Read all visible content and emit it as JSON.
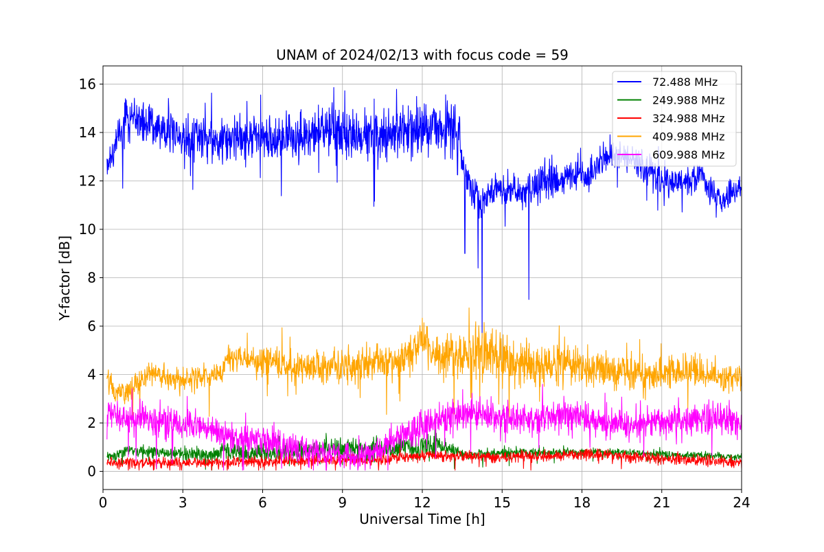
{
  "chart_data": {
    "type": "line",
    "title": "UNAM of 2024/02/13 with focus code = 59",
    "xlabel": "Universal Time [h]",
    "ylabel": "Y-factor [dB]",
    "xlim": [
      0,
      24
    ],
    "ylim": [
      -0.75,
      16.75
    ],
    "xticks": [
      "0",
      "3",
      "6",
      "9",
      "12",
      "15",
      "18",
      "21",
      "24"
    ],
    "yticks": [
      "0",
      "2",
      "4",
      "6",
      "8",
      "10",
      "12",
      "14",
      "16"
    ],
    "grid": true,
    "legend_position": "top-right",
    "series": [
      {
        "name": " 72.488 MHz",
        "color": "#0000ff",
        "points": [
          [
            0.15,
            12.8
          ],
          [
            0.4,
            13.3
          ],
          [
            0.75,
            14.0
          ],
          [
            0.8,
            14.8
          ],
          [
            1.5,
            14.4
          ],
          [
            2.5,
            14.0
          ],
          [
            3.5,
            13.8
          ],
          [
            4.5,
            13.7
          ],
          [
            5.5,
            13.8
          ],
          [
            6.5,
            13.7
          ],
          [
            7.5,
            13.9
          ],
          [
            8.5,
            14.0
          ],
          [
            9.5,
            13.9
          ],
          [
            10.5,
            14.0
          ],
          [
            11.5,
            14.1
          ],
          [
            12.5,
            14.3
          ],
          [
            13.4,
            14.2
          ],
          [
            13.5,
            12.6
          ],
          [
            13.8,
            11.8
          ],
          [
            14.1,
            11.4
          ],
          [
            14.2,
            10.8
          ],
          [
            14.5,
            11.6
          ],
          [
            15.0,
            11.8
          ],
          [
            15.5,
            11.5
          ],
          [
            16.0,
            11.6
          ],
          [
            16.5,
            11.8
          ],
          [
            17.0,
            12.0
          ],
          [
            17.5,
            12.2
          ],
          [
            18.0,
            12.3
          ],
          [
            18.5,
            12.4
          ],
          [
            19.0,
            13.1
          ],
          [
            19.5,
            13.1
          ],
          [
            20.0,
            12.9
          ],
          [
            20.5,
            12.5
          ],
          [
            21.0,
            11.9
          ],
          [
            21.5,
            11.9
          ],
          [
            22.0,
            12.0
          ],
          [
            22.5,
            12.2
          ],
          [
            22.75,
            11.5
          ],
          [
            23.2,
            11.2
          ],
          [
            23.6,
            11.5
          ],
          [
            24.0,
            11.7
          ]
        ],
        "amplitude": [
          [
            0.15,
            0.6
          ],
          [
            0.75,
            0.7
          ],
          [
            13.4,
            1.0
          ],
          [
            13.5,
            0.6
          ],
          [
            24.0,
            0.5
          ]
        ],
        "dips": [
          [
            13.6,
            9.0
          ],
          [
            14.1,
            8.4
          ],
          [
            14.25,
            5.5
          ],
          [
            16.0,
            7.1
          ]
        ]
      },
      {
        "name": "249.988 MHz",
        "color": "#008000",
        "points": [
          [
            0.15,
            0.6
          ],
          [
            0.7,
            0.75
          ],
          [
            1.0,
            0.85
          ],
          [
            2.5,
            0.75
          ],
          [
            4.0,
            0.65
          ],
          [
            4.5,
            0.85
          ],
          [
            5.5,
            0.7
          ],
          [
            6.0,
            0.8
          ],
          [
            7.0,
            0.75
          ],
          [
            8.0,
            0.95
          ],
          [
            9.0,
            0.95
          ],
          [
            10.0,
            0.9
          ],
          [
            11.0,
            0.95
          ],
          [
            12.0,
            1.0
          ],
          [
            12.6,
            1.1
          ],
          [
            13.5,
            0.7
          ],
          [
            15.0,
            0.75
          ],
          [
            17.0,
            0.8
          ],
          [
            19.0,
            0.8
          ],
          [
            21.0,
            0.7
          ],
          [
            24.0,
            0.6
          ]
        ],
        "amplitude": [
          [
            0.15,
            0.2
          ],
          [
            4.0,
            0.25
          ],
          [
            8.0,
            0.35
          ],
          [
            12.5,
            0.4
          ],
          [
            13.5,
            0.15
          ],
          [
            24.0,
            0.12
          ]
        ]
      },
      {
        "name": "324.988 MHz",
        "color": "#ff0000",
        "points": [
          [
            0.15,
            0.35
          ],
          [
            3.0,
            0.35
          ],
          [
            6.0,
            0.4
          ],
          [
            9.0,
            0.45
          ],
          [
            10.5,
            0.5
          ],
          [
            12.0,
            0.65
          ],
          [
            15.0,
            0.6
          ],
          [
            18.0,
            0.7
          ],
          [
            21.0,
            0.55
          ],
          [
            24.0,
            0.35
          ]
        ],
        "amplitude": [
          [
            0.15,
            0.18
          ],
          [
            24.0,
            0.2
          ]
        ]
      },
      {
        "name": "409.988 MHz",
        "color": "#ffa500",
        "points": [
          [
            0.15,
            3.8
          ],
          [
            0.5,
            3.2
          ],
          [
            1.0,
            3.3
          ],
          [
            1.8,
            4.1
          ],
          [
            2.5,
            3.8
          ],
          [
            3.5,
            3.9
          ],
          [
            4.5,
            4.0
          ],
          [
            4.6,
            4.7
          ],
          [
            6.0,
            4.6
          ],
          [
            7.0,
            4.4
          ],
          [
            8.5,
            4.3
          ],
          [
            9.5,
            4.4
          ],
          [
            10.5,
            4.5
          ],
          [
            11.5,
            4.6
          ],
          [
            11.9,
            5.4
          ],
          [
            12.5,
            4.8
          ],
          [
            13.5,
            4.8
          ],
          [
            14.0,
            5.0
          ],
          [
            15.0,
            4.7
          ],
          [
            16.0,
            4.4
          ],
          [
            17.0,
            4.5
          ],
          [
            18.0,
            4.3
          ],
          [
            19.0,
            4.2
          ],
          [
            20.0,
            4.1
          ],
          [
            20.5,
            3.9
          ],
          [
            21.0,
            4.0
          ],
          [
            22.0,
            4.2
          ],
          [
            23.0,
            3.9
          ],
          [
            24.0,
            3.8
          ]
        ],
        "amplitude": [
          [
            0.15,
            0.4
          ],
          [
            4.5,
            0.4
          ],
          [
            6.0,
            0.5
          ],
          [
            12.0,
            0.7
          ],
          [
            14.0,
            0.9
          ],
          [
            18.0,
            0.7
          ],
          [
            24.0,
            0.5
          ]
        ]
      },
      {
        "name": "609.988 MHz",
        "color": "#ff00ff",
        "points": [
          [
            0.15,
            2.3
          ],
          [
            1.0,
            2.2
          ],
          [
            2.0,
            2.1
          ],
          [
            3.0,
            1.9
          ],
          [
            4.0,
            1.8
          ],
          [
            5.0,
            1.4
          ],
          [
            6.0,
            1.3
          ],
          [
            7.0,
            1.0
          ],
          [
            8.0,
            0.8
          ],
          [
            9.0,
            0.7
          ],
          [
            9.7,
            0.6
          ],
          [
            10.5,
            1.0
          ],
          [
            11.5,
            1.6
          ],
          [
            12.5,
            2.1
          ],
          [
            13.5,
            2.4
          ],
          [
            14.5,
            2.3
          ],
          [
            16.0,
            2.2
          ],
          [
            17.0,
            2.3
          ],
          [
            18.0,
            2.3
          ],
          [
            19.0,
            2.0
          ],
          [
            20.0,
            1.9
          ],
          [
            21.0,
            2.0
          ],
          [
            22.0,
            2.1
          ],
          [
            23.0,
            2.2
          ],
          [
            24.0,
            2.0
          ]
        ],
        "amplitude": [
          [
            0.15,
            0.55
          ],
          [
            6.0,
            0.5
          ],
          [
            9.5,
            0.45
          ],
          [
            12.0,
            0.55
          ],
          [
            24.0,
            0.55
          ]
        ]
      }
    ]
  }
}
